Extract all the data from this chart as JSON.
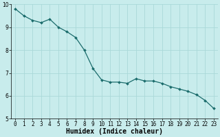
{
  "x": [
    0,
    1,
    2,
    3,
    4,
    5,
    6,
    7,
    8,
    9,
    10,
    11,
    12,
    13,
    14,
    15,
    16,
    17,
    18,
    19,
    20,
    21,
    22,
    23
  ],
  "y": [
    9.8,
    9.5,
    9.3,
    9.2,
    9.35,
    9.0,
    8.8,
    8.55,
    8.0,
    7.2,
    6.7,
    6.6,
    6.6,
    6.55,
    6.75,
    6.65,
    6.65,
    6.55,
    6.4,
    6.3,
    6.2,
    6.05,
    5.8,
    5.45
  ],
  "line_color": "#1a6b6b",
  "marker": "D",
  "marker_size": 2.0,
  "bg_color": "#c8ecec",
  "grid_color": "#aad8d8",
  "grid_lw": 0.6,
  "xlabel": "Humidex (Indice chaleur)",
  "ylim": [
    5,
    10
  ],
  "xlim_min": -0.5,
  "xlim_max": 23.5,
  "yticks": [
    5,
    6,
    7,
    8,
    9,
    10
  ],
  "xticks": [
    0,
    1,
    2,
    3,
    4,
    5,
    6,
    7,
    8,
    9,
    10,
    11,
    12,
    13,
    14,
    15,
    16,
    17,
    18,
    19,
    20,
    21,
    22,
    23
  ],
  "tick_fontsize": 5.5,
  "xlabel_fontsize": 7.0,
  "line_lw": 0.9
}
